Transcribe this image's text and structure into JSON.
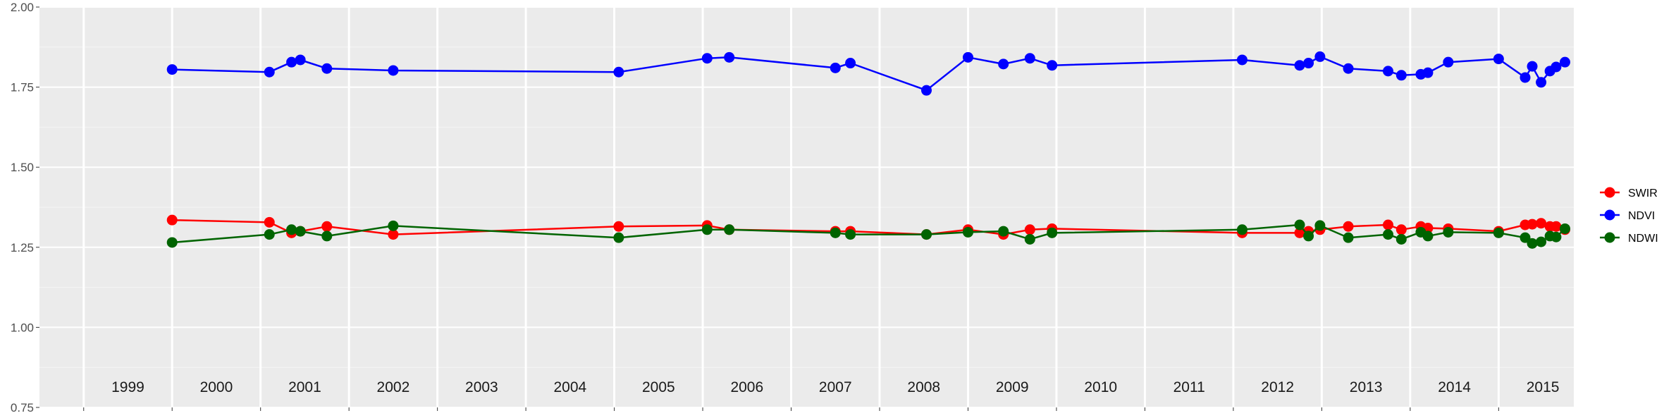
{
  "chart_data": {
    "type": "line",
    "title": "",
    "xlabel": "",
    "ylabel": "",
    "ylim": [
      0.75,
      2.0
    ],
    "yticks": [
      "0.75",
      "1.00",
      "1.25",
      "1.50",
      "1.75",
      "2.00"
    ],
    "xlim": [
      1998.5,
      2015.85
    ],
    "year_labels": [
      "1999",
      "2000",
      "2001",
      "2002",
      "2003",
      "2004",
      "2005",
      "2006",
      "2007",
      "2008",
      "2009",
      "2010",
      "2011",
      "2012",
      "2013",
      "2014",
      "2015"
    ],
    "grid": true,
    "legend_placement": "right",
    "series": [
      {
        "name": "SWIR",
        "color": "#ff0000",
        "x": [
          2000.0,
          2001.1,
          2001.35,
          2001.45,
          2001.75,
          2002.5,
          2005.05,
          2006.05,
          2006.3,
          2007.5,
          2007.67,
          2008.53,
          2009.0,
          2009.4,
          2009.7,
          2009.95,
          2012.1,
          2012.75,
          2012.85,
          2012.98,
          2013.3,
          2013.75,
          2013.9,
          2014.12,
          2014.2,
          2014.43,
          2015.0,
          2015.3,
          2015.38,
          2015.48,
          2015.58,
          2015.65,
          2015.75
        ],
        "y": [
          1.335,
          1.328,
          1.295,
          1.3,
          1.315,
          1.29,
          1.315,
          1.318,
          1.305,
          1.3,
          1.3,
          1.29,
          1.305,
          1.29,
          1.305,
          1.308,
          1.295,
          1.295,
          1.3,
          1.305,
          1.315,
          1.32,
          1.305,
          1.315,
          1.31,
          1.308,
          1.3,
          1.32,
          1.322,
          1.325,
          1.315,
          1.315,
          1.305
        ]
      },
      {
        "name": "NDVI",
        "color": "#0000ff",
        "x": [
          2000.0,
          2001.1,
          2001.35,
          2001.45,
          2001.75,
          2002.5,
          2005.05,
          2006.05,
          2006.3,
          2007.5,
          2007.67,
          2008.53,
          2009.0,
          2009.4,
          2009.7,
          2009.95,
          2012.1,
          2012.75,
          2012.85,
          2012.98,
          2013.3,
          2013.75,
          2013.9,
          2014.12,
          2014.2,
          2014.43,
          2015.0,
          2015.3,
          2015.38,
          2015.48,
          2015.58,
          2015.65,
          2015.75
        ],
        "y": [
          1.805,
          1.797,
          1.828,
          1.835,
          1.808,
          1.802,
          1.797,
          1.84,
          1.843,
          1.81,
          1.825,
          1.74,
          1.843,
          1.822,
          1.84,
          1.818,
          1.835,
          1.818,
          1.825,
          1.845,
          1.808,
          1.8,
          1.787,
          1.79,
          1.795,
          1.828,
          1.838,
          1.78,
          1.815,
          1.765,
          1.8,
          1.813,
          1.828
        ]
      },
      {
        "name": "NDWI",
        "color": "#006400",
        "x": [
          2000.0,
          2001.1,
          2001.35,
          2001.45,
          2001.75,
          2002.5,
          2005.05,
          2006.05,
          2006.3,
          2007.5,
          2007.67,
          2008.53,
          2009.0,
          2009.4,
          2009.7,
          2009.95,
          2012.1,
          2012.75,
          2012.85,
          2012.98,
          2013.3,
          2013.75,
          2013.9,
          2014.12,
          2014.2,
          2014.43,
          2015.0,
          2015.3,
          2015.38,
          2015.48,
          2015.58,
          2015.65,
          2015.75
        ],
        "y": [
          1.265,
          1.29,
          1.305,
          1.3,
          1.285,
          1.317,
          1.28,
          1.305,
          1.305,
          1.295,
          1.29,
          1.29,
          1.297,
          1.3,
          1.275,
          1.295,
          1.305,
          1.32,
          1.285,
          1.318,
          1.28,
          1.29,
          1.275,
          1.297,
          1.285,
          1.297,
          1.295,
          1.28,
          1.262,
          1.267,
          1.285,
          1.282,
          1.308
        ]
      }
    ]
  }
}
